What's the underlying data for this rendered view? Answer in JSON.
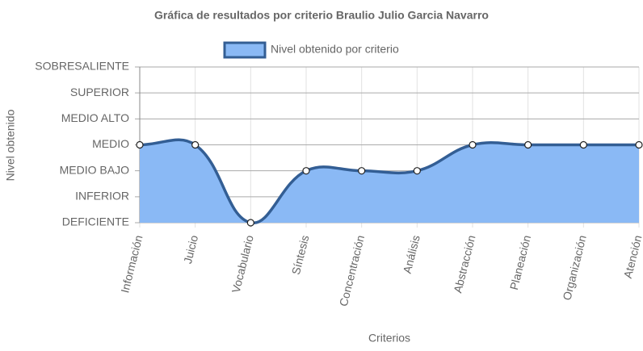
{
  "chart_data": {
    "type": "line",
    "title": "Gráfica de resultados por criterio Braulio Julio Garcia Navarro",
    "x_label": "Criterios",
    "y_label": "Nivel obtenido",
    "categories": [
      "Información",
      "Juicio",
      "Vocabulario",
      "Síntesis",
      "Concentración",
      "Análisis",
      "Abstracción",
      "Planeación",
      "Organización",
      "Atención"
    ],
    "series": [
      {
        "name": "Nivel obtenido por criterio",
        "color": "#335e94",
        "fill": "#8ab9f5",
        "values": [
          3,
          3,
          0,
          2,
          2,
          2,
          3,
          3,
          3,
          3
        ]
      }
    ],
    "ylim": [
      0,
      6
    ],
    "yticks": [
      {
        "value": 0,
        "label": "DEFICIENTE"
      },
      {
        "value": 1,
        "label": "INFERIOR"
      },
      {
        "value": 2,
        "label": "MEDIO BAJO"
      },
      {
        "value": 3,
        "label": "MEDIO"
      },
      {
        "value": 4,
        "label": "MEDIO ALTO"
      },
      {
        "value": 5,
        "label": "SUPERIOR"
      },
      {
        "value": 6,
        "label": "SOBRESALIENTE"
      }
    ],
    "grid": true
  }
}
